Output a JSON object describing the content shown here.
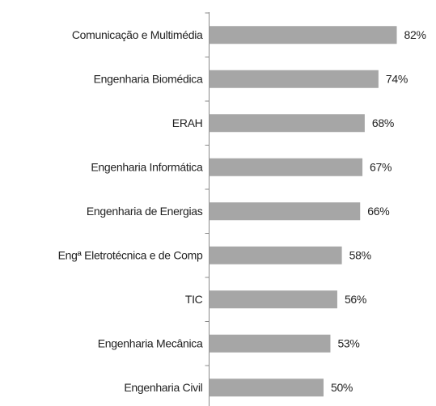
{
  "chart_data": {
    "type": "hbar",
    "categories": [
      "Comunicação e Multimédia",
      "Engenharia Biomédica",
      "ERAH",
      "Engenharia Informática",
      "Engenharia de Energias",
      "Engª Eletrotécnica e de Comp",
      "TIC",
      "Engenharia Mecânica",
      "Engenharia Civil"
    ],
    "values": [
      82,
      74,
      68,
      67,
      66,
      58,
      56,
      53,
      50
    ],
    "value_labels": [
      "82%",
      "74%",
      "68%",
      "67%",
      "66%",
      "58%",
      "56%",
      "53%",
      "50%"
    ],
    "color": "#a6a6a6"
  }
}
